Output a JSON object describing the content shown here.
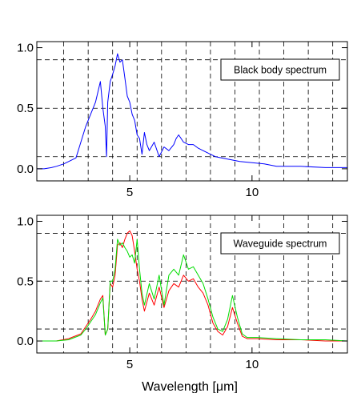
{
  "chart_data": [
    {
      "type": "line",
      "legend": "Black body spectrum",
      "legend_position": "top-right",
      "xlim": [
        1.2,
        13.9
      ],
      "ylim": [
        -0.1,
        1.05
      ],
      "xticks": [
        5,
        10
      ],
      "xtick_labels": [
        "5",
        "10"
      ],
      "yticks": [
        0.0,
        0.5,
        1.0
      ],
      "ytick_labels": [
        "0.0",
        "0.5",
        "1.0"
      ],
      "x_gridlines": [
        2.3,
        3.3,
        4.3,
        5.3,
        6.3,
        7.3,
        8.3,
        9.3,
        10.3,
        11.3,
        12.3,
        13.3
      ],
      "y_gridlines": [
        0.1,
        0.5,
        0.9
      ],
      "grid": true,
      "series": [
        {
          "color": "#0000ff",
          "x": [
            1.2,
            1.5,
            1.8,
            2.0,
            2.3,
            2.5,
            2.8,
            3.0,
            3.2,
            3.4,
            3.6,
            3.8,
            3.9,
            4.0,
            4.05,
            4.1,
            4.2,
            4.3,
            4.4,
            4.5,
            4.6,
            4.7,
            4.8,
            4.9,
            5.0,
            5.1,
            5.2,
            5.3,
            5.4,
            5.5,
            5.6,
            5.7,
            5.8,
            6.0,
            6.2,
            6.4,
            6.6,
            6.8,
            6.9,
            7.0,
            7.2,
            7.4,
            7.6,
            7.8,
            8.0,
            8.5,
            9.0,
            9.5,
            10.0,
            10.5,
            11.0,
            12.0,
            13.0,
            13.9
          ],
          "values": [
            0.0,
            0.0,
            0.01,
            0.02,
            0.04,
            0.06,
            0.09,
            0.22,
            0.35,
            0.45,
            0.55,
            0.72,
            0.5,
            0.35,
            0.1,
            0.55,
            0.72,
            0.78,
            0.85,
            0.95,
            0.88,
            0.9,
            0.75,
            0.6,
            0.55,
            0.45,
            0.4,
            0.28,
            0.25,
            0.12,
            0.3,
            0.2,
            0.15,
            0.22,
            0.1,
            0.18,
            0.15,
            0.2,
            0.25,
            0.28,
            0.22,
            0.2,
            0.2,
            0.17,
            0.15,
            0.1,
            0.08,
            0.06,
            0.05,
            0.04,
            0.02,
            0.02,
            0.01,
            0.01
          ]
        }
      ]
    },
    {
      "type": "line",
      "legend": "Waveguide spectrum",
      "legend_position": "top-right",
      "xlabel": "Wavelength [μm]",
      "xlim": [
        1.2,
        13.9
      ],
      "ylim": [
        -0.1,
        1.05
      ],
      "xticks": [
        5,
        10
      ],
      "xtick_labels": [
        "5",
        "10"
      ],
      "yticks": [
        0.0,
        0.5,
        1.0
      ],
      "ytick_labels": [
        "0.0",
        "0.5",
        "1.0"
      ],
      "x_gridlines": [
        2.3,
        3.3,
        4.3,
        5.3,
        6.3,
        7.3,
        8.3,
        9.3,
        10.3,
        11.3,
        12.3,
        13.3
      ],
      "y_gridlines": [
        0.1,
        0.5,
        0.9
      ],
      "grid": true,
      "series": [
        {
          "color": "#ff0000",
          "x": [
            1.2,
            2.0,
            2.5,
            3.0,
            3.2,
            3.4,
            3.6,
            3.8,
            3.9,
            4.0,
            4.1,
            4.2,
            4.3,
            4.4,
            4.5,
            4.6,
            4.7,
            4.8,
            4.9,
            5.0,
            5.1,
            5.2,
            5.3,
            5.4,
            5.5,
            5.6,
            5.8,
            6.0,
            6.2,
            6.4,
            6.6,
            6.8,
            7.0,
            7.2,
            7.4,
            7.6,
            7.8,
            8.0,
            8.2,
            8.4,
            8.6,
            8.8,
            9.0,
            9.2,
            9.4,
            9.6,
            9.8,
            10.2,
            11.0,
            12.0,
            13.0,
            13.9
          ],
          "values": [
            0.0,
            0.0,
            0.02,
            0.06,
            0.12,
            0.18,
            0.25,
            0.35,
            0.38,
            0.05,
            0.1,
            0.48,
            0.45,
            0.55,
            0.8,
            0.82,
            0.78,
            0.85,
            0.9,
            0.92,
            0.88,
            0.75,
            0.6,
            0.5,
            0.35,
            0.25,
            0.4,
            0.3,
            0.45,
            0.28,
            0.42,
            0.48,
            0.45,
            0.55,
            0.5,
            0.52,
            0.45,
            0.4,
            0.3,
            0.15,
            0.08,
            0.05,
            0.12,
            0.28,
            0.15,
            0.04,
            0.02,
            0.02,
            0.01,
            0.01,
            0.0,
            0.0
          ]
        },
        {
          "color": "#00dd00",
          "x": [
            1.2,
            2.0,
            2.5,
            3.0,
            3.2,
            3.4,
            3.6,
            3.8,
            3.9,
            4.0,
            4.1,
            4.2,
            4.3,
            4.4,
            4.5,
            4.6,
            4.7,
            4.8,
            4.9,
            5.0,
            5.1,
            5.2,
            5.3,
            5.4,
            5.5,
            5.6,
            5.8,
            6.0,
            6.2,
            6.4,
            6.6,
            6.8,
            7.0,
            7.2,
            7.4,
            7.6,
            7.8,
            8.0,
            8.2,
            8.4,
            8.6,
            8.8,
            9.0,
            9.2,
            9.4,
            9.6,
            9.8,
            10.2,
            11.0,
            12.0,
            13.0,
            13.9
          ],
          "values": [
            0.0,
            0.0,
            0.01,
            0.05,
            0.1,
            0.16,
            0.22,
            0.32,
            0.36,
            0.05,
            0.1,
            0.5,
            0.5,
            0.6,
            0.85,
            0.8,
            0.82,
            0.78,
            0.75,
            0.7,
            0.72,
            0.65,
            0.85,
            0.6,
            0.4,
            0.3,
            0.48,
            0.35,
            0.55,
            0.3,
            0.55,
            0.6,
            0.55,
            0.72,
            0.6,
            0.62,
            0.55,
            0.48,
            0.35,
            0.2,
            0.1,
            0.08,
            0.18,
            0.38,
            0.2,
            0.06,
            0.03,
            0.03,
            0.02,
            0.01,
            0.01,
            0.0
          ]
        }
      ]
    }
  ]
}
